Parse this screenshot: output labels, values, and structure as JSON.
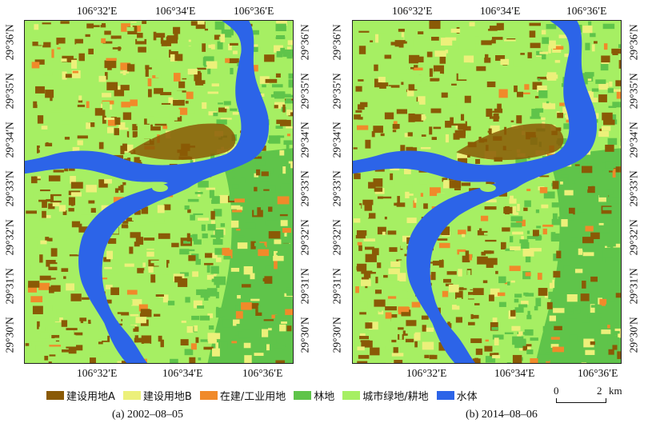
{
  "panels": [
    {
      "id": "a",
      "caption": "(a) 2002–08–05",
      "top_ticks": [
        "106°32′E",
        "106°34′E",
        "106°36′E"
      ],
      "bottom_ticks": [
        "106°32′E",
        "106°34′E",
        "106°36′E"
      ],
      "left_ticks": [
        "29°36′N",
        "29°35′N",
        "29°34′N",
        "29°33′N",
        "29°32′N",
        "29°31′N",
        "29°30′N"
      ],
      "right_ticks": [
        "29°36′N",
        "29°35′N",
        "29°34′N",
        "29°33′N",
        "29°32′N",
        "29°31′N",
        "29°30′N"
      ]
    },
    {
      "id": "b",
      "caption": "(b) 2014–08–06",
      "top_ticks": [
        "106°32′E",
        "106°34′E",
        "106°36′E"
      ],
      "bottom_ticks": [
        "106°32′E",
        "106°34′E",
        "106°36′E"
      ],
      "left_ticks": [
        "29°36′N",
        "29°35′N",
        "29°34′N",
        "29°33′N",
        "29°32′N",
        "29°31′N",
        "29°30′N"
      ],
      "right_ticks": [
        "29°36′N",
        "29°35′N",
        "29°34′N",
        "29°33′N",
        "29°32′N",
        "29°31′N",
        "29°30′N"
      ]
    }
  ],
  "legend": [
    {
      "label": "建设用地A",
      "color": "#8a5a06"
    },
    {
      "label": "建设用地B",
      "color": "#ecf07a"
    },
    {
      "label": "在建/工业用地",
      "color": "#f08a2a"
    },
    {
      "label": "林地",
      "color": "#5fc44a"
    },
    {
      "label": "城市绿地/耕地",
      "color": "#a6ef63"
    },
    {
      "label": "水体",
      "color": "#2c64e8"
    }
  ],
  "scale": {
    "zero": "0",
    "end": "2",
    "unit": "km"
  }
}
